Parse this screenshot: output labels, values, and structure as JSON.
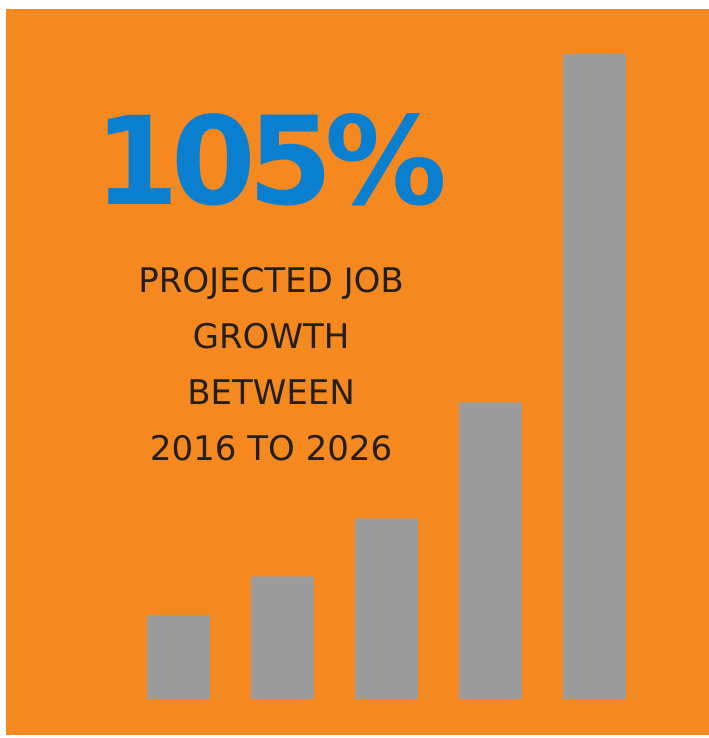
{
  "headline": "105%",
  "subtitle_lines": [
    "PROJECTED JOB",
    "GROWTH",
    "BETWEEN",
    "2016 TO 2026"
  ],
  "colors": {
    "background": "#f5881f",
    "headline": "#0a7fd0",
    "text": "#231f20",
    "bars": "#9b9b9b"
  },
  "chart_data": {
    "type": "bar",
    "categories": [
      "",
      "",
      "",
      "",
      ""
    ],
    "values": [
      13,
      19,
      28,
      46,
      100
    ],
    "ylim": [
      0,
      100
    ],
    "grid": false,
    "title": "",
    "xlabel": "",
    "ylabel": ""
  }
}
